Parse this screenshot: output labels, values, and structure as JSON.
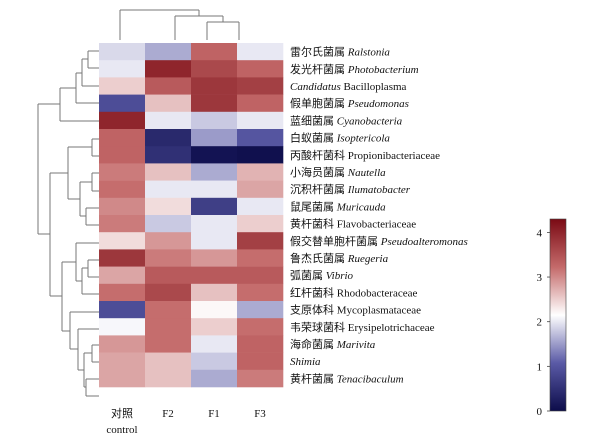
{
  "chart_data": {
    "type": "heatmap",
    "columns": [
      {
        "label": "对照",
        "label2": "control"
      },
      {
        "label": "F2"
      },
      {
        "label": "F1"
      },
      {
        "label": "F3"
      }
    ],
    "rows": [
      {
        "zh": "雷尔氏菌属",
        "latin": "Ralstonia",
        "italic": true
      },
      {
        "zh": "发光杆菌属",
        "latin": "Photobacterium",
        "italic": true
      },
      {
        "zh": "",
        "latin": "Candidatus",
        "italic": true,
        "suffix": "Bacilloplasma"
      },
      {
        "zh": "假单胞菌属",
        "latin": "Pseudomonas",
        "italic": true
      },
      {
        "zh": "蓝细菌属",
        "latin": "Cyanobacteria",
        "italic": true
      },
      {
        "zh": "白蚁菌属",
        "latin": "Isoptericola",
        "italic": true
      },
      {
        "zh": "丙酸杆菌科",
        "latin": "Propionibacteriaceae",
        "italic": false
      },
      {
        "zh": "小海员菌属",
        "latin": "Nautella",
        "italic": true
      },
      {
        "zh": "沉积杆菌属",
        "latin": "Ilumatobacter",
        "italic": true
      },
      {
        "zh": "鼠尾菌属",
        "latin": "Muricauda",
        "italic": true
      },
      {
        "zh": "黄杆菌科",
        "latin": "Flavobacteriaceae",
        "italic": false
      },
      {
        "zh": "假交替单胞杆菌属",
        "latin": "Pseudoalteromonas",
        "italic": true
      },
      {
        "zh": "鲁杰氏菌属",
        "latin": "Ruegeria",
        "italic": true
      },
      {
        "zh": "弧菌属",
        "latin": "Vibrio",
        "italic": true
      },
      {
        "zh": "红杆菌科",
        "latin": "Rhodobacteraceae",
        "italic": false
      },
      {
        "zh": "支原体科",
        "latin": "Mycoplasmataceae",
        "italic": false
      },
      {
        "zh": "韦荣球菌科",
        "latin": "Erysipelotrichaceae",
        "italic": false
      },
      {
        "zh": "海命菌属",
        "latin": "Marivita",
        "italic": true
      },
      {
        "zh": "",
        "latin": "Shimia",
        "italic": true
      },
      {
        "zh": "黄杆菌属",
        "latin": "Tenacibaculum",
        "italic": true
      }
    ],
    "values": [
      [
        1.9,
        1.6,
        3.3,
        2.0
      ],
      [
        2.0,
        4.0,
        3.6,
        3.3
      ],
      [
        2.5,
        3.4,
        3.8,
        3.7
      ],
      [
        0.9,
        2.6,
        3.8,
        3.3
      ],
      [
        4.0,
        2.0,
        1.8,
        2.0
      ],
      [
        3.3,
        0.4,
        1.5,
        1.0
      ],
      [
        3.3,
        0.5,
        0.1,
        0.05
      ],
      [
        3.1,
        2.6,
        1.6,
        2.7
      ],
      [
        3.2,
        2.0,
        2.0,
        2.8
      ],
      [
        3.0,
        2.4,
        0.7,
        2.0
      ],
      [
        3.1,
        1.8,
        2.0,
        2.5
      ],
      [
        2.4,
        2.9,
        2.0,
        3.7
      ],
      [
        3.8,
        3.1,
        2.9,
        3.2
      ],
      [
        2.8,
        3.4,
        3.4,
        3.4
      ],
      [
        3.2,
        3.6,
        2.6,
        3.2
      ],
      [
        0.9,
        3.2,
        2.2,
        1.6
      ],
      [
        2.1,
        3.2,
        2.5,
        3.2
      ],
      [
        2.9,
        3.2,
        2.0,
        3.3
      ],
      [
        2.8,
        2.6,
        1.8,
        3.3
      ],
      [
        2.8,
        2.6,
        1.6,
        3.1
      ]
    ],
    "color_scale": {
      "min": 0,
      "max": 4.3,
      "ticks": [
        0,
        1,
        2,
        3,
        4
      ],
      "colors": [
        "#0c0c4a",
        "#5a5aa6",
        "#ffffff",
        "#c46a6a",
        "#7a0a14"
      ]
    },
    "legend_position": "right",
    "row_dendrogram": true,
    "column_dendrogram": true
  }
}
